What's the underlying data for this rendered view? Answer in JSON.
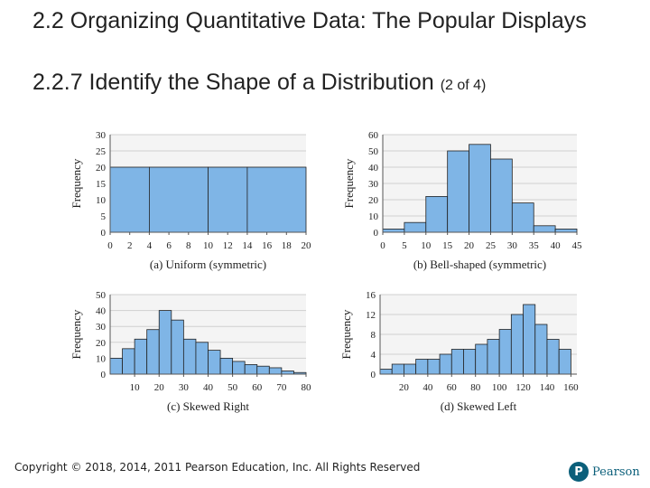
{
  "slide": {
    "title": "2.2 Organizing Quantitative Data: The Popular Displays",
    "subtitle": "2.2.7 Identify the Shape of a Distribution",
    "part": "(2 of 4)",
    "copyright": "Copyright © 2018, 2014, 2011 Pearson Education, Inc. All Rights Reserved",
    "logo_text": "Pearson",
    "logo_letter": "P"
  },
  "colors": {
    "bar_fill": "#7fb5e6",
    "bar_stroke": "#222222",
    "grid": "#d0d0d0",
    "plot_bg": "#f4f4f4",
    "brand": "#0b5f7a"
  },
  "chart_data": [
    {
      "type": "bar",
      "panel": "a",
      "title": "(a) Uniform (symmetric)",
      "ylabel": "Frequency",
      "ylim": [
        0,
        30
      ],
      "yticks": [
        0,
        5,
        10,
        15,
        20,
        25,
        30
      ],
      "xlim": [
        0,
        20
      ],
      "xticks": [
        0,
        2,
        4,
        6,
        8,
        10,
        12,
        14,
        16,
        18,
        20
      ],
      "bins": [
        [
          0,
          4
        ],
        [
          4,
          10
        ],
        [
          10,
          14
        ],
        [
          14,
          20
        ]
      ],
      "values": [
        20,
        20,
        20,
        20
      ]
    },
    {
      "type": "bar",
      "panel": "b",
      "title": "(b) Bell-shaped (symmetric)",
      "ylabel": "Frequency",
      "ylim": [
        0,
        60
      ],
      "yticks": [
        0,
        10,
        20,
        30,
        40,
        50,
        60
      ],
      "xlim": [
        0,
        45
      ],
      "xticks": [
        0,
        5,
        10,
        15,
        20,
        25,
        30,
        35,
        40,
        45
      ],
      "bins": [
        [
          0,
          5
        ],
        [
          5,
          10
        ],
        [
          10,
          15
        ],
        [
          15,
          20
        ],
        [
          20,
          25
        ],
        [
          25,
          30
        ],
        [
          30,
          35
        ],
        [
          35,
          40
        ],
        [
          40,
          45
        ]
      ],
      "values": [
        2,
        6,
        22,
        50,
        54,
        45,
        18,
        4,
        2
      ]
    },
    {
      "type": "bar",
      "panel": "c",
      "title": "(c) Skewed Right",
      "ylabel": "Frequency",
      "ylim": [
        0,
        50
      ],
      "yticks": [
        0,
        10,
        20,
        30,
        40,
        50
      ],
      "xlim": [
        0,
        80
      ],
      "xticks": [
        10,
        20,
        30,
        40,
        50,
        60,
        70,
        80
      ],
      "bins": [
        [
          0,
          5
        ],
        [
          5,
          10
        ],
        [
          10,
          15
        ],
        [
          15,
          20
        ],
        [
          20,
          25
        ],
        [
          25,
          30
        ],
        [
          30,
          35
        ],
        [
          35,
          40
        ],
        [
          40,
          45
        ],
        [
          45,
          50
        ],
        [
          50,
          55
        ],
        [
          55,
          60
        ],
        [
          60,
          65
        ],
        [
          65,
          70
        ],
        [
          70,
          75
        ],
        [
          75,
          80
        ]
      ],
      "values": [
        10,
        16,
        22,
        28,
        40,
        34,
        22,
        20,
        15,
        10,
        8,
        6,
        5,
        4,
        2,
        1
      ]
    },
    {
      "type": "bar",
      "panel": "d",
      "title": "(d) Skewed Left",
      "ylabel": "Frequency",
      "ylim": [
        0,
        16
      ],
      "yticks": [
        0,
        4,
        8,
        12,
        16
      ],
      "xlim": [
        0,
        165
      ],
      "xticks": [
        20,
        40,
        60,
        80,
        100,
        120,
        140,
        160
      ],
      "bins": [
        [
          0,
          10
        ],
        [
          10,
          20
        ],
        [
          20,
          30
        ],
        [
          30,
          40
        ],
        [
          40,
          50
        ],
        [
          50,
          60
        ],
        [
          60,
          70
        ],
        [
          70,
          80
        ],
        [
          80,
          90
        ],
        [
          90,
          100
        ],
        [
          100,
          110
        ],
        [
          110,
          120
        ],
        [
          120,
          130
        ],
        [
          130,
          140
        ],
        [
          140,
          150
        ],
        [
          150,
          160
        ]
      ],
      "values": [
        1,
        2,
        2,
        3,
        3,
        4,
        5,
        5,
        6,
        7,
        9,
        12,
        14,
        10,
        7,
        5
      ]
    }
  ]
}
